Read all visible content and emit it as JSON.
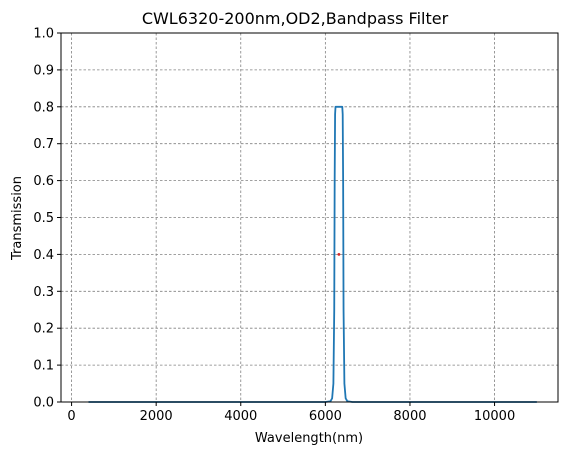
{
  "chart_data": {
    "type": "line",
    "title": "CWL6320-200nm,OD2,Bandpass Filter",
    "xlabel": "Wavelength(nm)",
    "ylabel": "Transmission",
    "xlim": [
      -250,
      11500
    ],
    "ylim": [
      0,
      1.0
    ],
    "xticks": [
      0,
      2000,
      4000,
      6000,
      8000,
      10000
    ],
    "yticks": [
      0.0,
      0.1,
      0.2,
      0.3,
      0.4,
      0.5,
      0.6,
      0.7,
      0.8,
      0.9,
      1.0
    ],
    "grid": true,
    "series": [
      {
        "color": "#1f77b4",
        "x": [
          400,
          6000,
          6120,
          6160,
          6190,
          6210,
          6220,
          6230,
          6240,
          6260,
          6300,
          6340,
          6380,
          6400,
          6410,
          6420,
          6430,
          6450,
          6480,
          6520,
          6640,
          11000
        ],
        "y": [
          0,
          0,
          0.002,
          0.01,
          0.05,
          0.25,
          0.6,
          0.78,
          0.8,
          0.8,
          0.8,
          0.8,
          0.8,
          0.8,
          0.78,
          0.6,
          0.25,
          0.05,
          0.01,
          0.002,
          0,
          0
        ]
      }
    ],
    "markers": [
      {
        "x": 6320,
        "y": 0.4,
        "color": "#d62728"
      }
    ]
  }
}
